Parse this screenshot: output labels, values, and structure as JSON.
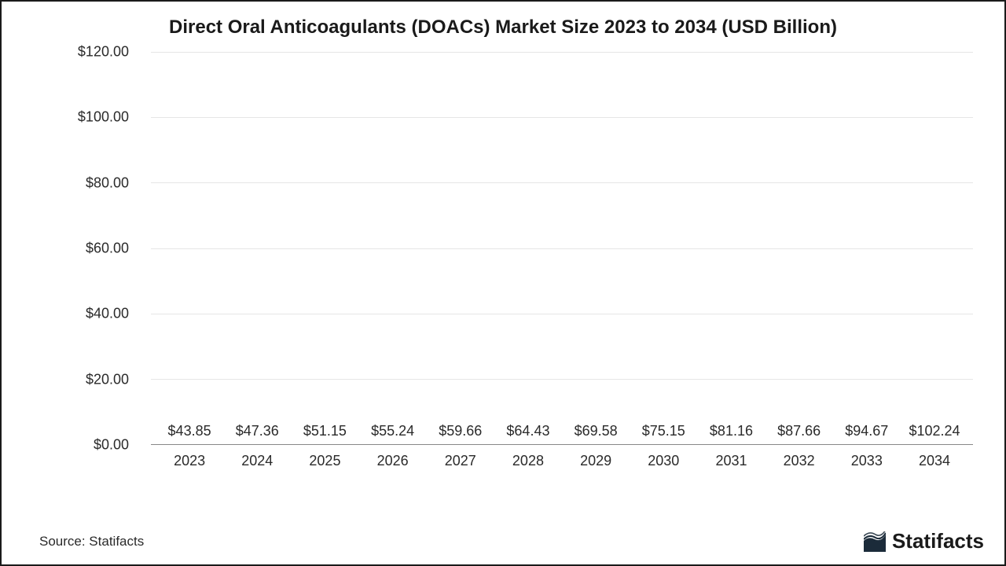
{
  "title": "Direct Oral Anticoagulants (DOACs) Market Size 2023 to 2034 (USD Billion)",
  "title_fontsize": 24,
  "chart": {
    "type": "bar",
    "categories": [
      "2023",
      "2024",
      "2025",
      "2026",
      "2027",
      "2028",
      "2029",
      "2030",
      "2031",
      "2032",
      "2033",
      "2034"
    ],
    "values": [
      43.85,
      47.36,
      51.15,
      55.24,
      59.66,
      64.43,
      69.58,
      75.15,
      81.16,
      87.66,
      94.67,
      102.24
    ],
    "value_labels": [
      "$43.85",
      "$47.36",
      "$51.15",
      "$55.24",
      "$59.66",
      "$64.43",
      "$69.58",
      "$75.15",
      "$81.16",
      "$87.66",
      "$94.67",
      "$102.24"
    ],
    "bar_color": "#1a6657",
    "background_color": "#ffffff",
    "grid_color": "#e6e6e6",
    "axis_line_color": "#888888",
    "ylim": [
      0,
      120
    ],
    "ytick_step": 20,
    "ytick_labels": [
      "$0.00",
      "$20.00",
      "$40.00",
      "$60.00",
      "$80.00",
      "$100.00",
      "$120.00"
    ],
    "bar_width_ratio": 0.7,
    "tick_fontsize": 18,
    "value_label_fontsize": 18,
    "text_color": "#2a2a2a"
  },
  "footer": {
    "source_text": "Source: Statifacts",
    "source_fontsize": 17,
    "brand_name": "Statifacts",
    "brand_fontsize": 26,
    "brand_color": "#1a1a1a",
    "mark_color": "#1b2b3a"
  }
}
